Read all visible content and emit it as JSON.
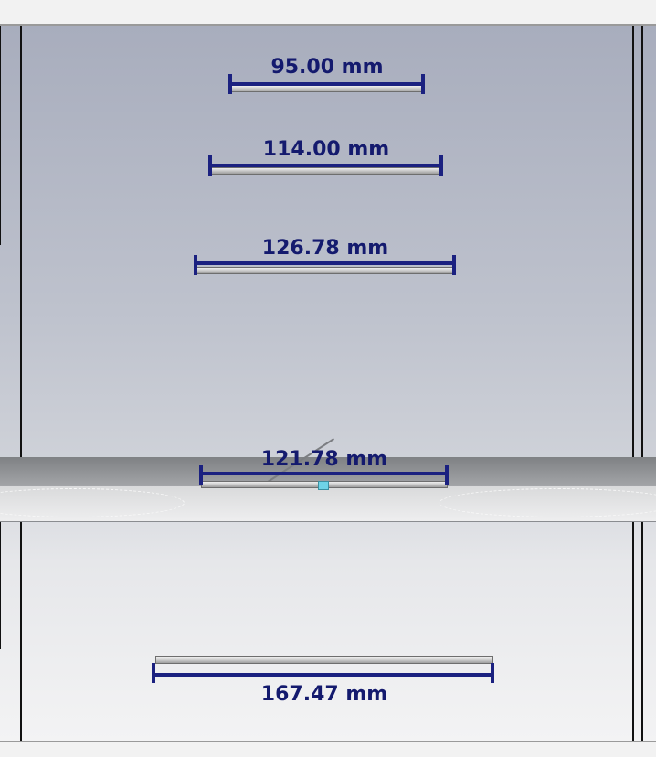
{
  "scene": {
    "dimensions": [
      {
        "id": "dim-1",
        "label": "95.00 mm"
      },
      {
        "id": "dim-2",
        "label": "114.00 mm"
      },
      {
        "id": "dim-3",
        "label": "126.78 mm"
      },
      {
        "id": "dim-4",
        "label": "121.78 mm"
      },
      {
        "id": "dim-5",
        "label": "167.47 mm"
      }
    ],
    "colors": {
      "dimension_line": "#1b2180",
      "dimension_text": "#141a6e",
      "background_top": "#a8adbd",
      "background_bottom": "#f3f3f4"
    }
  }
}
